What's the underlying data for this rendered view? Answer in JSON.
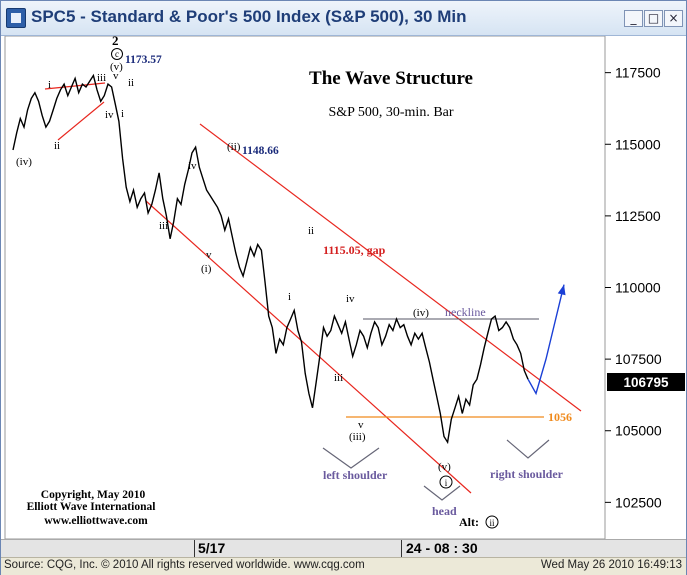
{
  "window": {
    "title": "SPC5 - Standard & Poor's 500 Index (S&P 500), 30 Min",
    "minimize_glyph": "_",
    "maximize_glyph": "□",
    "close_glyph": "×"
  },
  "chart_data": {
    "type": "line",
    "title": "The Wave Structure",
    "subtitle": "S&P 500, 30-min. Bar",
    "y_ticks": [
      117500,
      115000,
      112500,
      110000,
      107500,
      105000,
      102500
    ],
    "ylim": [
      1015,
      1185
    ],
    "last_price": "106795",
    "x_labels": [
      "5/17",
      "24 - 08 : 30"
    ],
    "grid": false,
    "series": [
      {
        "values": [
          1148,
          1154,
          1159,
          1156,
          1162,
          1166,
          1168,
          1165,
          1160,
          1156,
          1158,
          1162,
          1166,
          1169,
          1171,
          1167,
          1170,
          1173,
          1168,
          1171,
          1170,
          1172,
          1174,
          1169,
          1165,
          1167,
          1171,
          1170,
          1164,
          1158,
          1145,
          1135,
          1130,
          1134,
          1128,
          1131,
          1133,
          1126,
          1129,
          1134,
          1140,
          1131,
          1125,
          1117,
          1123,
          1131,
          1129,
          1136,
          1141,
          1147,
          1149,
          1142,
          1138,
          1134,
          1132,
          1130,
          1128,
          1125,
          1120,
          1124,
          1118,
          1112,
          1107,
          1104,
          1109,
          1114,
          1111,
          1115,
          1113,
          1102,
          1090,
          1086,
          1077,
          1082,
          1080,
          1086,
          1089,
          1092,
          1085,
          1081,
          1070,
          1063,
          1058,
          1067,
          1076,
          1086,
          1083,
          1085,
          1090,
          1087,
          1084,
          1088,
          1082,
          1076,
          1080,
          1085,
          1083,
          1079,
          1084,
          1088,
          1086,
          1080,
          1083,
          1087,
          1085,
          1089,
          1086,
          1087,
          1083,
          1080,
          1084,
          1082,
          1084,
          1079,
          1074,
          1068,
          1062,
          1056,
          1048,
          1046,
          1054,
          1058,
          1062,
          1056,
          1061,
          1059,
          1066,
          1068,
          1073,
          1079,
          1084,
          1089,
          1090,
          1085,
          1086,
          1088,
          1086,
          1082,
          1080,
          1077,
          1071,
          1068
        ],
        "color": "#000000"
      },
      {
        "values": [
          1068,
          1063,
          1075,
          1101
        ],
        "color": "#1a3fd6"
      }
    ],
    "wave_labels": [
      "(iv)",
      "ii",
      "i",
      "iii",
      "iv",
      "v",
      "ii",
      "i",
      "2",
      "c",
      "(v)",
      "iii",
      "iv",
      "v",
      "(i)",
      "(ii)",
      "ii",
      "i",
      "iv",
      "iii",
      "v",
      "(iii)",
      "(iv)",
      "(v)",
      "i",
      "ii"
    ],
    "annotations": {
      "high_label": "1173.57",
      "wave_ii_label": "1148.66",
      "gap_label": "1115.05, gap",
      "support_label": "1056",
      "neckline_label": "neckline",
      "left_shoulder": "left shoulder",
      "right_shoulder": "right shoulder",
      "head": "head",
      "alt_label": "Alt:"
    },
    "copyright": [
      "Copyright, May 2010",
      "Elliott Wave International",
      "www.elliottwave.com"
    ],
    "colors": {
      "price": "#000000",
      "channel": "#e8271f",
      "projection": "#1a3fd6",
      "support": "#f08a1c",
      "neckline": "#555566",
      "pattern_labels": "#6a5a9e",
      "wave_value_label": "#1a2a7a",
      "gap_label": "#d42020"
    }
  },
  "status": {
    "source": "Source: CQG, Inc. © 2010 All rights reserved worldwide. www.cqg.com",
    "datetime": "Wed May 26 2010 16:49:13"
  }
}
